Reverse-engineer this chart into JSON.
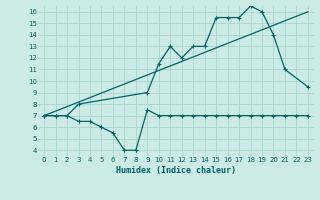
{
  "xlabel": "Humidex (Indice chaleur)",
  "bg_color": "#cceae6",
  "grid_color": "#aad4cf",
  "line_color": "#006666",
  "xlim": [
    -0.5,
    23.5
  ],
  "ylim": [
    3.5,
    16.5
  ],
  "yticks": [
    4,
    5,
    6,
    7,
    8,
    9,
    10,
    11,
    12,
    13,
    14,
    15,
    16
  ],
  "xticks": [
    0,
    1,
    2,
    3,
    4,
    5,
    6,
    7,
    8,
    9,
    10,
    11,
    12,
    13,
    14,
    15,
    16,
    17,
    18,
    19,
    20,
    21,
    22,
    23
  ],
  "line1_x": [
    0,
    1,
    2,
    3,
    9,
    10,
    11,
    12,
    13,
    14,
    15,
    16,
    17,
    18,
    19,
    20,
    21,
    23
  ],
  "line1_y": [
    7,
    7,
    7,
    8,
    9,
    11.5,
    13,
    12,
    13,
    13,
    15.5,
    15.5,
    15.5,
    16.5,
    16,
    14,
    11,
    9.5
  ],
  "line2_x": [
    0,
    23
  ],
  "line2_y": [
    7,
    16
  ],
  "line3_x": [
    0,
    1,
    2,
    3,
    4,
    5,
    6,
    7,
    8,
    9,
    10,
    11,
    12,
    13,
    14,
    15,
    16,
    17,
    18,
    19,
    20,
    21,
    22,
    23
  ],
  "line3_y": [
    7,
    7,
    7,
    6.5,
    6.5,
    6,
    5.5,
    4,
    4,
    7.5,
    7,
    7,
    7,
    7,
    7,
    7,
    7,
    7,
    7,
    7,
    7,
    7,
    7,
    7
  ]
}
